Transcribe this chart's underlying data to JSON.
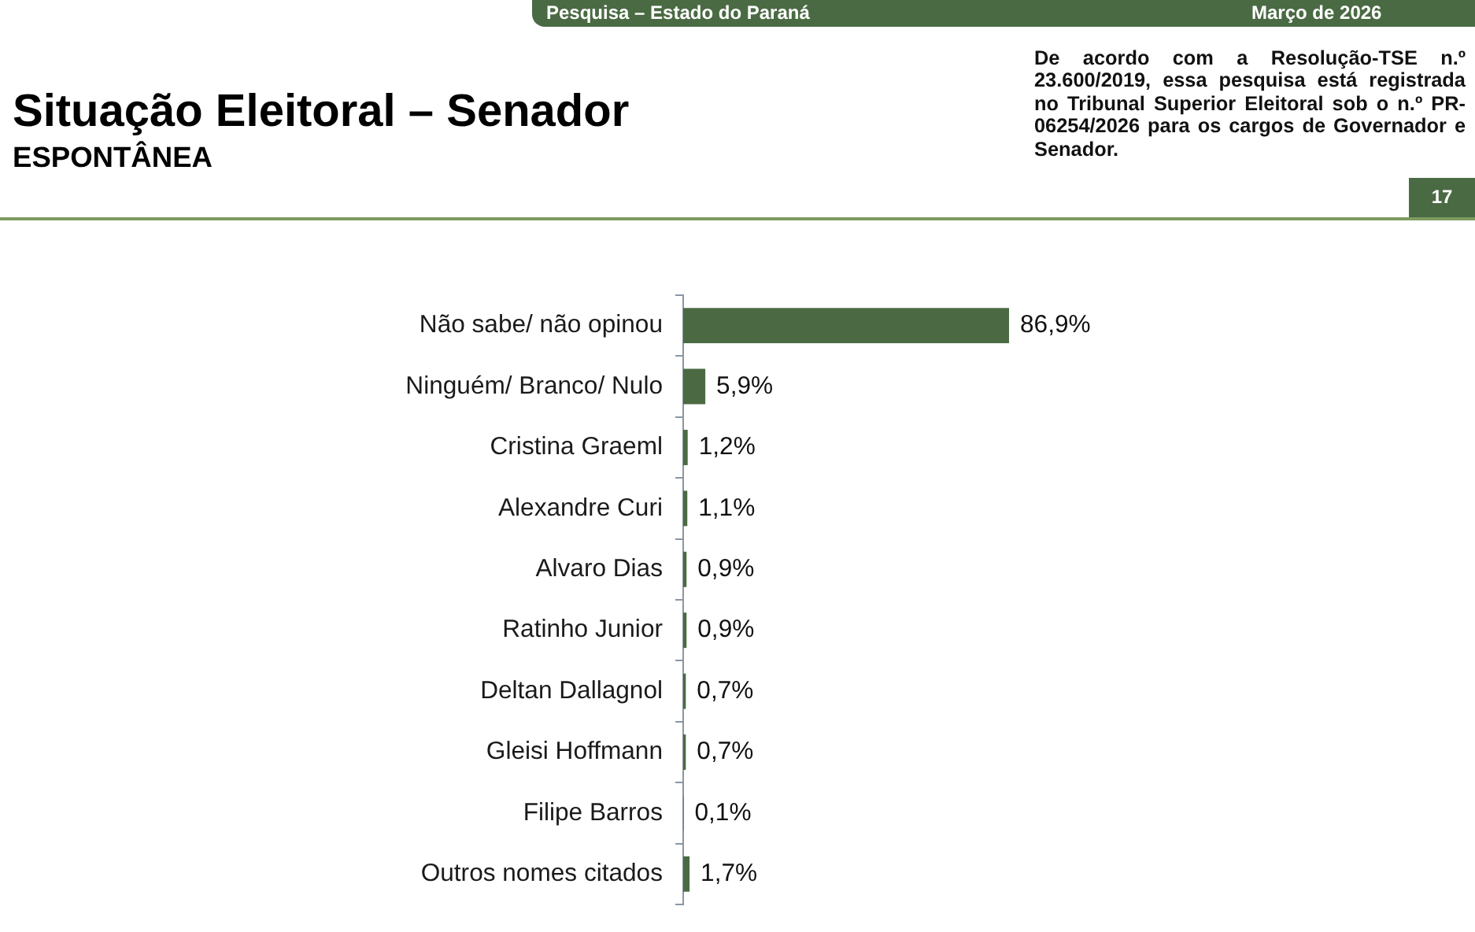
{
  "chart_data": {
    "type": "bar",
    "orientation": "horizontal",
    "title": "Situação Eleitoral – Senador",
    "subtitle": "ESPONTÂNEA",
    "categories": [
      "Não sabe/ não opinou",
      "Ninguém/ Branco/ Nulo",
      "Cristina Graeml",
      "Alexandre Curi",
      "Alvaro Dias",
      "Ratinho Junior",
      "Deltan Dallagnol",
      "Gleisi Hoffmann",
      "Filipe Barros",
      "Outros nomes citados"
    ],
    "values": [
      86.9,
      5.9,
      1.2,
      1.1,
      0.9,
      0.9,
      0.7,
      0.7,
      0.1,
      1.7
    ],
    "value_labels": [
      "86,9%",
      "5,9%",
      "1,2%",
      "1,1%",
      "0,9%",
      "0,9%",
      "0,7%",
      "0,7%",
      "0,1%",
      "1,7%"
    ],
    "color": "#4b6a43",
    "tick_labels": "y",
    "annotations": [
      "Pesquisa – Estado do Paraná",
      "Março de 2026",
      "De acordo com a Resolução-TSE n.º 23.600/2019, essa pesquisa está registrada no Tribunal Superior Eleitoral sob o n.º PR-06254/2026 para os cargos de Governador e Senador.",
      "17"
    ]
  }
}
